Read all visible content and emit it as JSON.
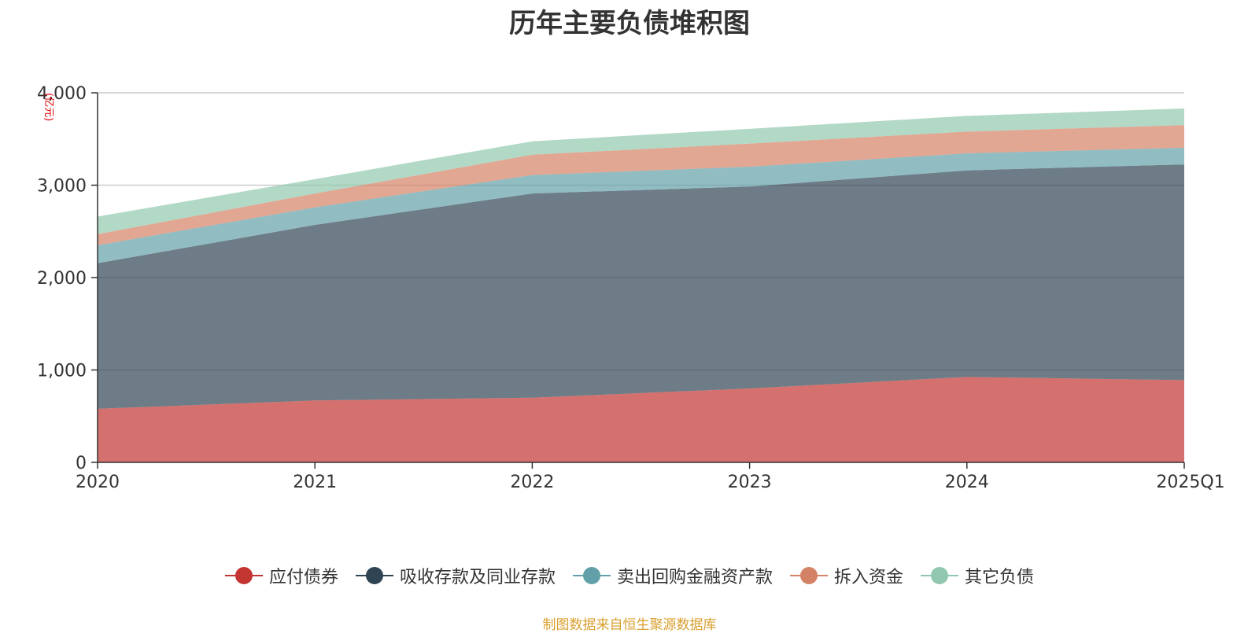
{
  "chart_data": {
    "type": "area",
    "stacked": true,
    "title": "历年主要负债堆积图",
    "unit_label": "(亿元)",
    "categories": [
      "2020",
      "2021",
      "2022",
      "2023",
      "2024",
      "2025Q1"
    ],
    "ylim": [
      0,
      4000
    ],
    "yticks": [
      0,
      1000,
      2000,
      3000,
      4000
    ],
    "ytick_labels": [
      "0",
      "1,000",
      "2,000",
      "3,000",
      "4,000"
    ],
    "grid": true,
    "legend_position": "bottom",
    "series": [
      {
        "name": "应付债券",
        "color": "#c23531",
        "values": [
          580,
          670,
          700,
          800,
          925,
          890
        ]
      },
      {
        "name": "吸收存款及同业存款",
        "color": "#2f4554",
        "values": [
          1575,
          1900,
          2210,
          2185,
          2235,
          2335
        ]
      },
      {
        "name": "卖出回购金融资产款",
        "color": "#61a0a8",
        "values": [
          195,
          190,
          200,
          215,
          185,
          180
        ]
      },
      {
        "name": "拆入资金",
        "color": "#d48265",
        "values": [
          120,
          150,
          220,
          250,
          235,
          245
        ]
      },
      {
        "name": "其它负债",
        "color": "#91c7ae",
        "values": [
          190,
          155,
          145,
          160,
          170,
          180
        ]
      }
    ]
  },
  "source_note": "制图数据来自恒生聚源数据库"
}
